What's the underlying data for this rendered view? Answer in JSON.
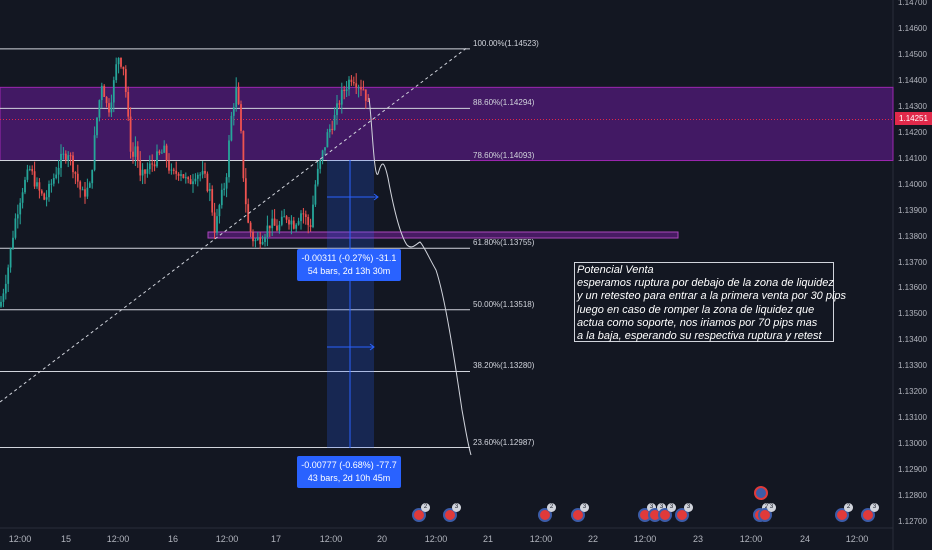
{
  "price_axis": {
    "labels": [
      "1.14700",
      "1.14600",
      "1.14500",
      "1.14400",
      "1.14300",
      "1.14200",
      "1.14100",
      "1.14000",
      "1.13900",
      "1.13800",
      "1.13700",
      "1.13600",
      "1.13500",
      "1.13400",
      "1.13300",
      "1.13200",
      "1.13100",
      "1.13000",
      "1.12900",
      "1.12800",
      "1.12700"
    ],
    "current_price": "1.14251",
    "current_price_color": "#e0294a"
  },
  "time_axis": {
    "labels": [
      "12:00",
      "15",
      "12:00",
      "16",
      "12:00",
      "17",
      "12:00",
      "20",
      "12:00",
      "21",
      "12:00",
      "22",
      "12:00",
      "23",
      "12:00",
      "24",
      "12:00"
    ]
  },
  "fib_levels": [
    {
      "label": "100.00%(1.14523)",
      "price": 1.14523
    },
    {
      "label": "88.60%(1.14294)",
      "price": 1.14294
    },
    {
      "label": "78.60%(1.14093)",
      "price": 1.14093
    },
    {
      "label": "61.80%(1.13755)",
      "price": 1.13755
    },
    {
      "label": "50.00%(1.13518)",
      "price": 1.13518
    },
    {
      "label": "38.20%(1.13280)",
      "price": 1.1328
    },
    {
      "label": "23.60%(1.12987)",
      "price": 1.12987
    }
  ],
  "liquidity_zone": {
    "top": 1.14375,
    "bottom": 1.14093,
    "color": "#9c27b0"
  },
  "support_zone": {
    "top": 1.13808,
    "bottom": 1.13788
  },
  "measurements": [
    {
      "line1": "-0.00311 (-0.27%) -31.1",
      "line2": "54 bars, 2d 13h 30m"
    },
    {
      "line1": "-0.00777 (-0.68%) -77.7",
      "line2": "43 bars, 2d 10h 45m"
    }
  ],
  "note": {
    "lines": [
      "Potencial Venta",
      "esperamos ruptura por debajo de la zona de liquidez",
      "y un retesteo para entrar a la primera venta por 30 pips",
      "luego en caso de romper la zona de liquidez que",
      "actua como soporte, nos iriamos por 70 pips mas",
      "a la baja, esperando su respectiva ruptura y retest"
    ]
  },
  "events": [
    {
      "badge": "2"
    },
    {
      "badge": "3"
    },
    {
      "badge": "2"
    },
    {
      "badge": "3"
    },
    {
      "badge": "3"
    },
    {
      "badge": "3"
    },
    {
      "badge": "3"
    },
    {
      "badge": "3"
    },
    {
      "badge": "2"
    },
    {
      "badge": "3"
    },
    {
      "badge": "2"
    },
    {
      "badge": "3"
    }
  ],
  "colors": {
    "background": "#131722",
    "bull": "#26a69a",
    "bear": "#ef5350",
    "measure_box": "#2962ff"
  }
}
